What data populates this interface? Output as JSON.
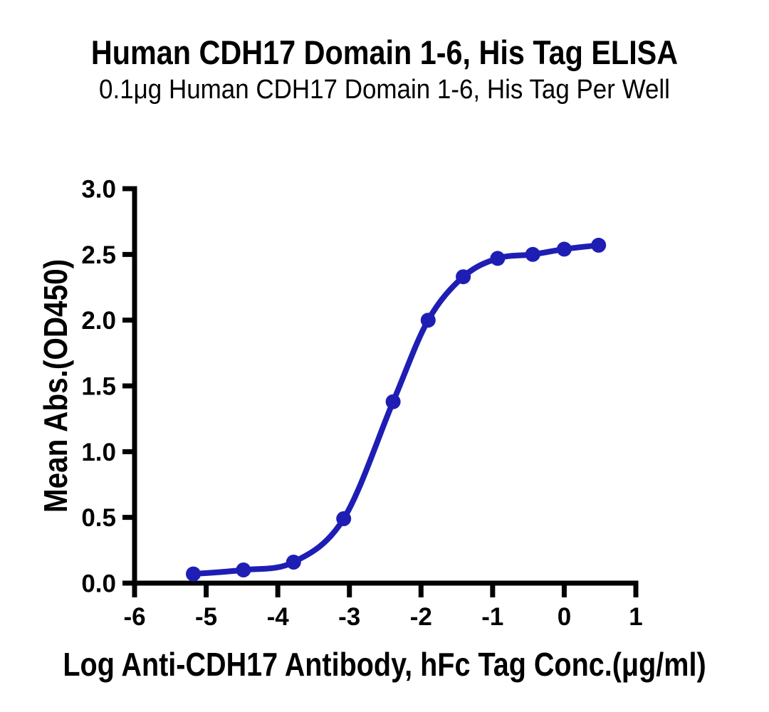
{
  "chart_data": {
    "type": "line",
    "title": "Human CDH17 Domain 1-6, His Tag ELISA",
    "subtitle": "0.1μg Human CDH17 Domain 1-6, His Tag Per Well",
    "xlabel": "Log Anti-CDH17 Antibody, hFc Tag Conc.(μg/ml)",
    "ylabel": "Mean Abs.(OD450)",
    "xlim": [
      -6,
      1
    ],
    "ylim": [
      0,
      3
    ],
    "grid": false,
    "legend": "none",
    "x_ticks": {
      "values": [
        -6,
        -5,
        -4,
        -3,
        -2,
        -1,
        0,
        1
      ],
      "labels": [
        "-6",
        "-5",
        "-4",
        "-3",
        "-2",
        "-1",
        "0",
        "1"
      ]
    },
    "y_ticks": {
      "values": [
        0,
        0.5,
        1.0,
        1.5,
        2.0,
        2.5,
        3.0
      ],
      "labels": [
        "0.0",
        "0.5",
        "1.0",
        "1.5",
        "2.0",
        "2.5",
        "3.0"
      ]
    },
    "series": [
      {
        "name": "Anti-CDH17 Antibody, hFc Tag",
        "color": "#1e1eb4",
        "marker": "circle",
        "x": [
          -5.18,
          -4.48,
          -3.78,
          -3.08,
          -2.39,
          -1.9,
          -1.41,
          -0.93,
          -0.44,
          0.0,
          0.48
        ],
        "y": [
          0.07,
          0.1,
          0.16,
          0.49,
          1.38,
          2.0,
          2.33,
          2.47,
          2.5,
          2.54,
          2.57
        ]
      }
    ],
    "axis_color": "#000000",
    "background_color": "#ffffff"
  }
}
